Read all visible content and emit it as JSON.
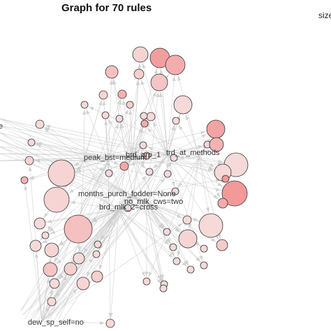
{
  "title": "Graph for 70 rules",
  "legend": {
    "label": "size"
  },
  "items": [
    {
      "label": "peak_bst=medium"
    },
    {
      "label": "brd_grp_1"
    },
    {
      "label": "trd_at_methods"
    },
    {
      "label": "months_purch_fodder=None"
    },
    {
      "label": "no_mlk_cws=two"
    },
    {
      "label": "brd_mlk_2=cross"
    },
    {
      "label": "dew_sp_self=no"
    },
    {
      "label": "e"
    }
  ],
  "colors": {
    "node_low": "#f7e3e3",
    "node_high": "#f08080",
    "edge": "#c9c9c9"
  }
}
